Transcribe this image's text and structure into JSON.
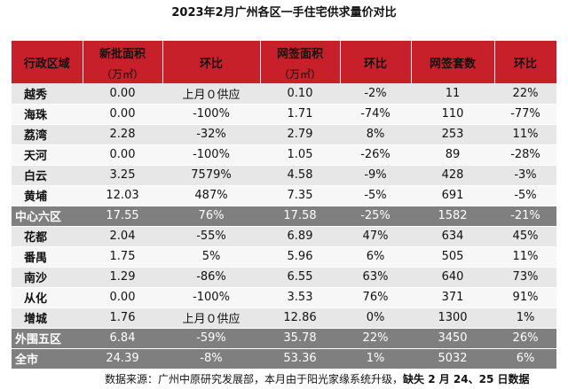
{
  "title": "2023年2月广州各区一手住宅供求量价对比",
  "header": {
    "district": "行政区域",
    "new_area": "新批面积",
    "new_area_unit": "（万㎡）",
    "new_area_change": "环比",
    "signed_area": "网签面积",
    "signed_area_unit": "（万㎡）",
    "signed_area_change": "环比",
    "signed_units": "网签套数",
    "signed_units_change": "环比"
  },
  "rows": [
    {
      "district": "越秀",
      "new_area": "0.00",
      "new_change": "上月０供应",
      "signed_area": "0.10",
      "signed_change": "-2%",
      "units": "11",
      "units_change": "22%"
    },
    {
      "district": "海珠",
      "new_area": "0.00",
      "new_change": "-100%",
      "signed_area": "1.71",
      "signed_change": "-74%",
      "units": "110",
      "units_change": "-77%"
    },
    {
      "district": "荔湾",
      "new_area": "2.28",
      "new_change": "-32%",
      "signed_area": "2.79",
      "signed_change": "8%",
      "units": "253",
      "units_change": "11%"
    },
    {
      "district": "天河",
      "new_area": "0.00",
      "new_change": "-100%",
      "signed_area": "1.05",
      "signed_change": "-26%",
      "units": "89",
      "units_change": "-28%"
    },
    {
      "district": "白云",
      "new_area": "3.25",
      "new_change": "7579%",
      "signed_area": "4.58",
      "signed_change": "-9%",
      "units": "428",
      "units_change": "-3%"
    },
    {
      "district": "黄埔",
      "new_area": "12.03",
      "new_change": "487%",
      "signed_area": "7.35",
      "signed_change": "-5%",
      "units": "691",
      "units_change": "-5%"
    },
    {
      "district": "中心六区",
      "new_area": "17.55",
      "new_change": "76%",
      "signed_area": "17.58",
      "signed_change": "-25%",
      "units": "1582",
      "units_change": "-21%",
      "summary": true
    },
    {
      "district": "花都",
      "new_area": "2.04",
      "new_change": "-55%",
      "signed_area": "6.89",
      "signed_change": "47%",
      "units": "634",
      "units_change": "45%"
    },
    {
      "district": "番禺",
      "new_area": "1.75",
      "new_change": "5%",
      "signed_area": "5.96",
      "signed_change": "6%",
      "units": "505",
      "units_change": "11%"
    },
    {
      "district": "南沙",
      "new_area": "1.29",
      "new_change": "-86%",
      "signed_area": "6.55",
      "signed_change": "63%",
      "units": "640",
      "units_change": "73%"
    },
    {
      "district": "从化",
      "new_area": "0.00",
      "new_change": "-100%",
      "signed_area": "3.53",
      "signed_change": "76%",
      "units": "371",
      "units_change": "91%"
    },
    {
      "district": "增城",
      "new_area": "1.76",
      "new_change": "上月０供应",
      "signed_area": "12.86",
      "signed_change": "0%",
      "units": "1300",
      "units_change": "1%"
    },
    {
      "district": "外围五区",
      "new_area": "6.84",
      "new_change": "-59%",
      "signed_area": "35.78",
      "signed_change": "22%",
      "units": "3450",
      "units_change": "26%",
      "summary": true
    },
    {
      "district": "全市",
      "new_area": "24.39",
      "new_change": "-8%",
      "signed_area": "53.36",
      "signed_change": "1%",
      "units": "5032",
      "units_change": "6%",
      "summary": true
    }
  ],
  "source": {
    "text": "数据来源：广州中原研究发展部，本月由于阳光家缘系统升级，",
    "bold": "缺失 2 月 24、25 日数据"
  },
  "colors": {
    "header_bg": "#c8202a",
    "summary_bg": "#7f7f7f"
  }
}
